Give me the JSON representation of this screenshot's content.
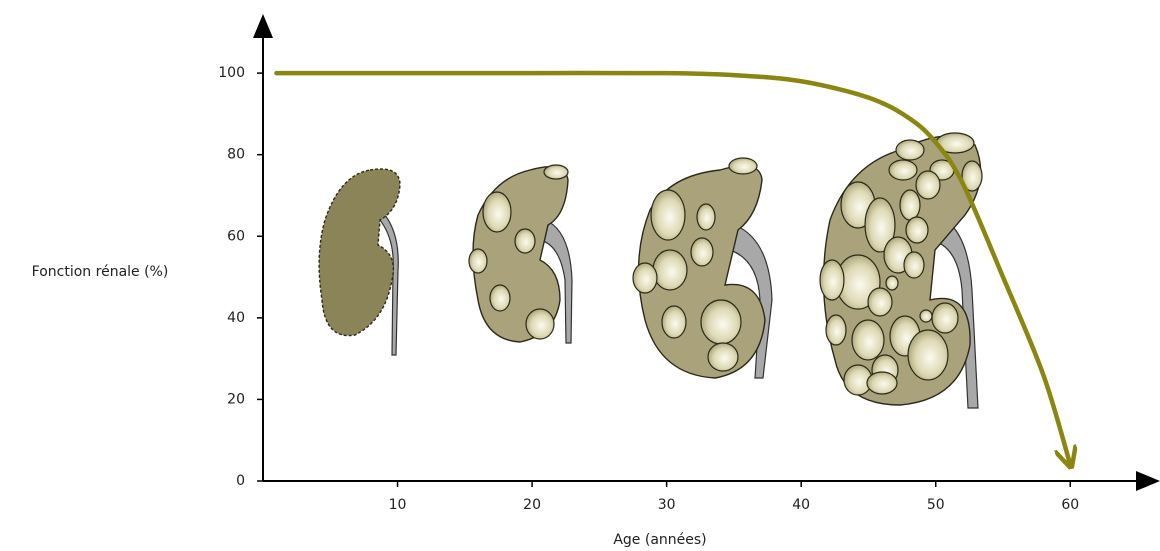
{
  "chart_data": {
    "type": "line",
    "x_label": "Age (années)",
    "y_label": "Fonction rénale (%)",
    "x": [
      1,
      10,
      20,
      30,
      35,
      40,
      45,
      48,
      50,
      52,
      55,
      58,
      60
    ],
    "series": [
      {
        "color": "#8a8610",
        "values": [
          100,
          100,
          100,
          100,
          99.5,
          98,
          94,
          89,
          83,
          73,
          50,
          26,
          4
        ]
      }
    ],
    "xlim": [
      0,
      66
    ],
    "ylim": [
      0,
      114
    ],
    "xticks": [
      10,
      20,
      30,
      40,
      50,
      60
    ],
    "yticks": [
      0,
      20,
      40,
      60,
      80,
      100
    ]
  }
}
